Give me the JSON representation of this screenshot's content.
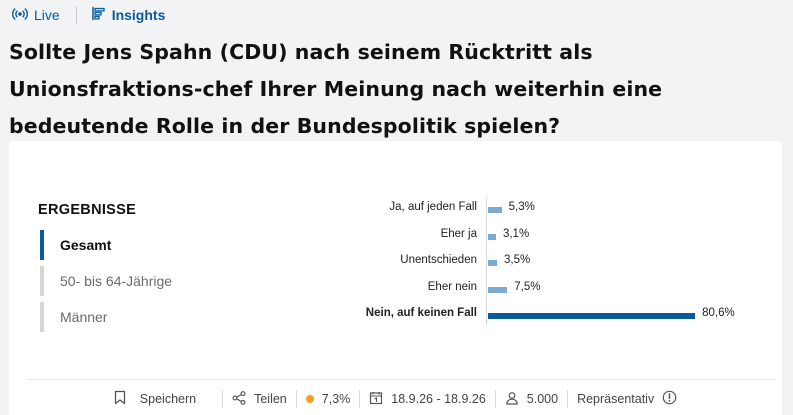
{
  "nav": {
    "live_label": "Live",
    "insights_label": "Insights",
    "accent_color": "#0a5a9c"
  },
  "question": "Sollte Jens Spahn (CDU) nach seinem Rücktritt als Unionsfraktions-chef Ihrer Meinung nach weiterhin eine bedeutende Rolle in der Bundespolitik spielen?",
  "results": {
    "title": "ERGEBNISSE",
    "filters": [
      {
        "label": "Gesamt",
        "active": true
      },
      {
        "label": "50- bis 64-Jährige",
        "active": false
      },
      {
        "label": "Männer",
        "active": false
      }
    ]
  },
  "chart_data": {
    "type": "bar",
    "orientation": "horizontal",
    "categories": [
      "Ja, auf jeden Fall",
      "Eher ja",
      "Unentschieden",
      "Eher nein",
      "Nein, auf keinen Fall"
    ],
    "values": [
      5.3,
      3.1,
      3.5,
      7.5,
      80.6
    ],
    "value_labels": [
      "5,3%",
      "3,1%",
      "3,5%",
      "7,5%",
      "80,6%"
    ],
    "highlight_index": 4,
    "unit": "%",
    "xlim": [
      0,
      100
    ],
    "colors": {
      "bar": "#7aaad2",
      "highlight": "#0a5a9c"
    }
  },
  "footer": {
    "save_label": "Speichern",
    "share_label": "Teilen",
    "margin_value": "7,3%",
    "margin_dot_color": "#f0a020",
    "period": "18.9.26 - 18.9.26",
    "participants": "5.000",
    "representative_label": "Repräsentativ"
  }
}
